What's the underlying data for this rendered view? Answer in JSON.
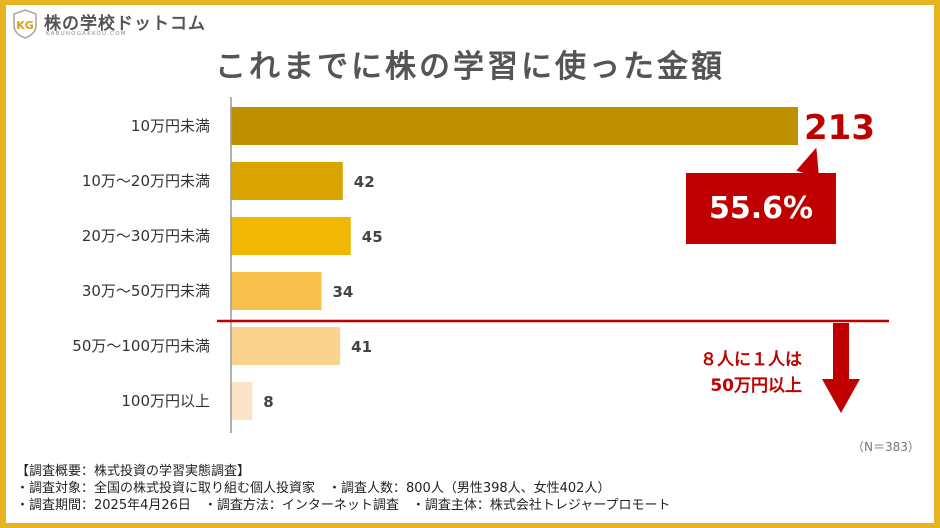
{
  "logo": {
    "name": "株の学校ドットコム",
    "sub": "KABUNOGAKKOU.COM",
    "mark": "KG"
  },
  "chart_data": {
    "type": "bar",
    "orientation": "horizontal",
    "title": "これまでに株の学習に使った金額",
    "categories": [
      "10万円未満",
      "10万～20万円未満",
      "20万～30万円未満",
      "30万～50万円未満",
      "50万～100万円未満",
      "100万円以上"
    ],
    "values": [
      213,
      42,
      45,
      34,
      41,
      8
    ],
    "colors": [
      "#bf9000",
      "#d9a300",
      "#f2b705",
      "#f7c04a",
      "#fad48e",
      "#fde3c7"
    ],
    "xlim": [
      0,
      213
    ],
    "grid": false,
    "legend": "none"
  },
  "annotations": {
    "total_value": "213",
    "total_percent": "55.6%",
    "callout_line1": "８人に１人は",
    "callout_line2": "50万円以上",
    "accent_color": "#c00000",
    "n_note": "（N＝383）"
  },
  "footer": {
    "heading": "【調査概要：株式投資の学習実態調査】",
    "line1": "・調査対象：全国の株式投資に取り組む個人投資家　・調査人数：800人（男性398人、女性402人）",
    "line2": "・調査期間：2025年4月26日　・調査方法：インターネット調査　・調査主体：株式会社トレジャープロモート"
  }
}
